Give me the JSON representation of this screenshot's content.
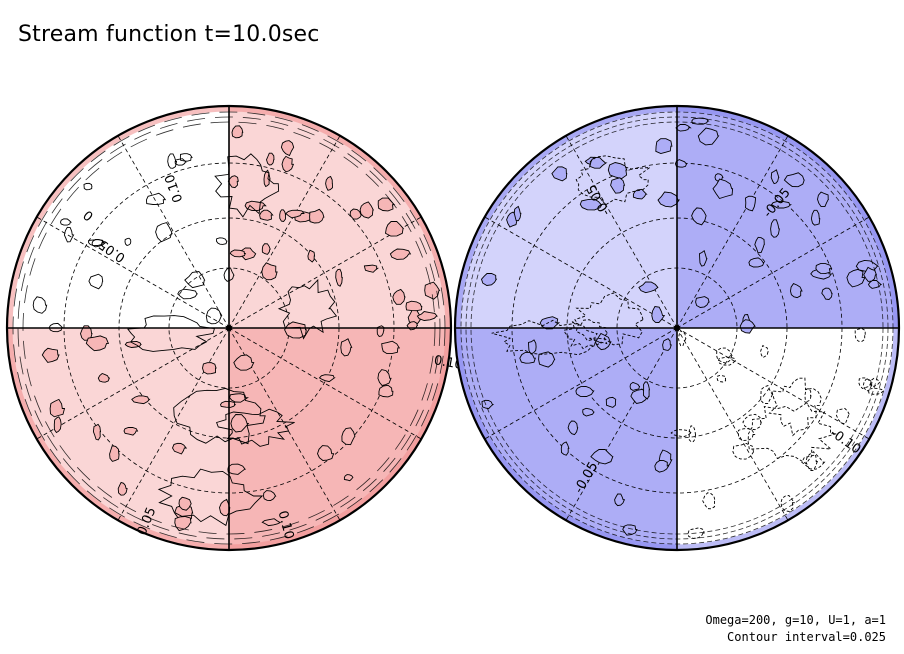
{
  "title": "Stream function t=10.0sec",
  "params": {
    "line1": "Omega=200, g=10, U=1, a=1",
    "line2": "Contour interval=0.025"
  },
  "colors": {
    "pos_light": "#fad6d6",
    "pos_mid": "#f6b6b6",
    "pos_dark": "#f08d8d",
    "neg_light": "#d3d3fb",
    "neg_mid": "#adadf6",
    "neg_dark": "#8585ee",
    "zero": "#ffffff"
  },
  "chart_data": {
    "type": "contour map on two polar disks",
    "contour_interval": 0.025,
    "hemispheres": [
      {
        "sign": "positive",
        "quadrants": {
          "upper_left": 0.0,
          "upper_right": 0.025,
          "lower_left": 0.025,
          "lower_right": 0.05
        },
        "contour_labels": [
          {
            "text": "0.10"
          },
          {
            "text": "0.05"
          },
          {
            "text": "0.10"
          },
          {
            "text": "0.05"
          },
          {
            "text": "0.10"
          },
          {
            "text": "0"
          }
        ]
      },
      {
        "sign": "negative",
        "quadrants": {
          "upper_left": -0.025,
          "upper_right": -0.05,
          "lower_left": -0.05,
          "lower_right": 0.0
        },
        "contour_labels": [
          {
            "text": "-0.05"
          },
          {
            "text": "-0.05"
          },
          {
            "text": "-0.05"
          },
          {
            "text": "-0.10"
          }
        ]
      }
    ]
  }
}
